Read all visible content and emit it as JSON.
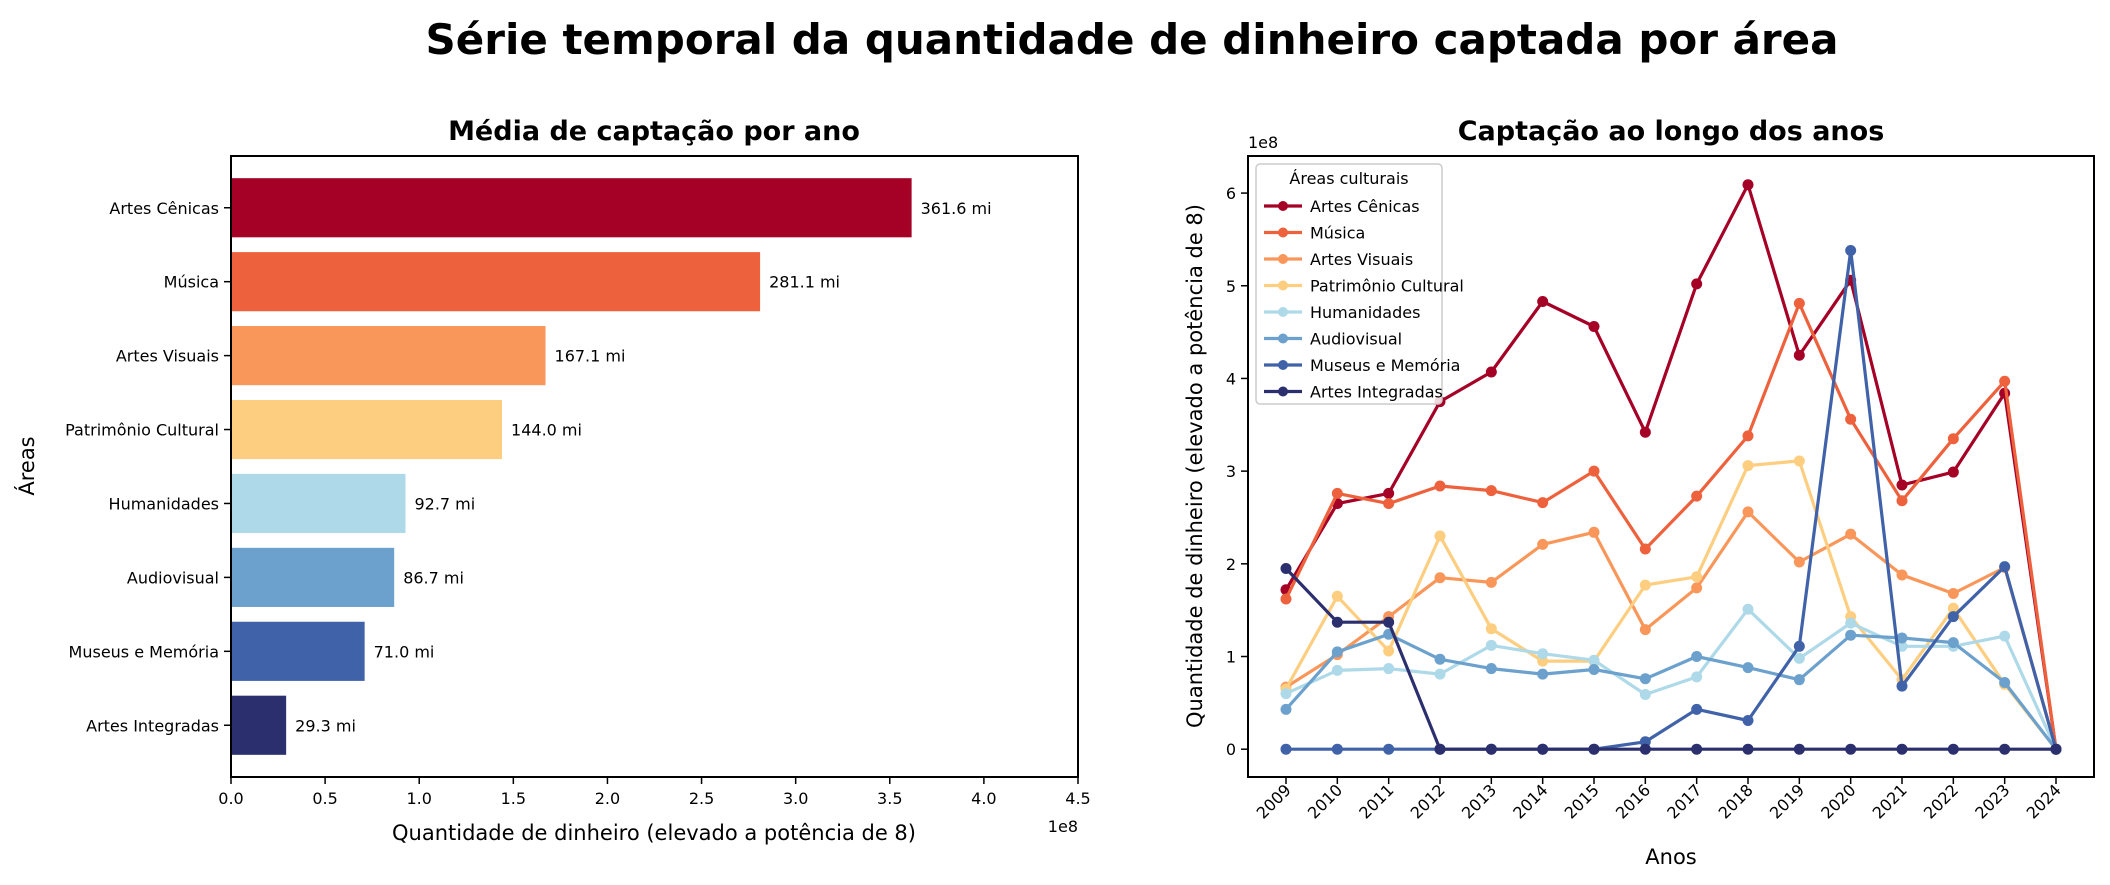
{
  "suptitle": "Série temporal da quantidade de dinheiro captada por área",
  "chart_data": [
    {
      "type": "bar",
      "orientation": "horizontal",
      "title": "Média de captação por ano",
      "xlabel": "Quantidade de dinheiro (elevado a potência de 8)",
      "ylabel": "Áreas",
      "offset_text": "1e8",
      "xlim": [
        0,
        4.5
      ],
      "xticks": [
        "0.0",
        "0.5",
        "1.0",
        "1.5",
        "2.0",
        "2.5",
        "3.0",
        "3.5",
        "4.0",
        "4.5"
      ],
      "categories": [
        "Artes Cênicas",
        "Música",
        "Artes Visuais",
        "Patrimônio Cultural",
        "Humanidades",
        "Audiovisual",
        "Museus e Memória",
        "Artes Integradas"
      ],
      "values": [
        3.616,
        2.811,
        1.671,
        1.44,
        0.927,
        0.867,
        0.71,
        0.293
      ],
      "value_labels": [
        "361.6 mi",
        "281.1 mi",
        "167.1 mi",
        "144.0 mi",
        "92.7 mi",
        "86.7 mi",
        "71.0 mi",
        "29.3 mi"
      ],
      "colors": [
        "#a50026",
        "#ee613d",
        "#f9975a",
        "#fdce80",
        "#aed9e8",
        "#6ba1cc",
        "#4062a8",
        "#2c2f6e"
      ]
    },
    {
      "type": "line",
      "title": "Captação ao longo dos anos",
      "xlabel": "Anos",
      "ylabel": "Quantidade de dinheiro (elevado a potência de 8)",
      "offset_text": "1e8",
      "ylim": [
        -0.3,
        6.4
      ],
      "yticks": [
        "0",
        "1",
        "2",
        "3",
        "4",
        "5",
        "6"
      ],
      "x": [
        "2009",
        "2010",
        "2011",
        "2012",
        "2013",
        "2014",
        "2015",
        "2016",
        "2017",
        "2018",
        "2019",
        "2020",
        "2021",
        "2022",
        "2023",
        "2024"
      ],
      "legend_title": "Áreas culturais",
      "legend_position": "upper left",
      "series": [
        {
          "name": "Artes Cênicas",
          "color": "#a50026",
          "values": [
            1.72,
            2.65,
            2.76,
            3.75,
            4.07,
            4.83,
            4.56,
            3.42,
            5.02,
            6.09,
            4.25,
            5.06,
            2.85,
            2.99,
            3.84,
            0.0
          ]
        },
        {
          "name": "Música",
          "color": "#ee613d",
          "values": [
            1.62,
            2.76,
            2.65,
            2.84,
            2.79,
            2.66,
            3.0,
            2.16,
            2.73,
            3.38,
            4.81,
            3.56,
            2.68,
            3.35,
            3.97,
            0.0
          ]
        },
        {
          "name": "Artes Visuais",
          "color": "#f9975a",
          "values": [
            0.67,
            1.02,
            1.43,
            1.85,
            1.8,
            2.21,
            2.34,
            1.29,
            1.74,
            2.56,
            2.02,
            2.32,
            1.88,
            1.68,
            1.96,
            0.0
          ]
        },
        {
          "name": "Patrimônio Cultural",
          "color": "#fdce80",
          "values": [
            0.65,
            1.65,
            1.06,
            2.3,
            1.3,
            0.95,
            0.95,
            1.77,
            1.86,
            3.06,
            3.11,
            1.43,
            0.75,
            1.52,
            0.7,
            0.0
          ]
        },
        {
          "name": "Humanidades",
          "color": "#aed9e8",
          "values": [
            0.6,
            0.85,
            0.87,
            0.81,
            1.12,
            1.03,
            0.96,
            0.59,
            0.78,
            1.51,
            0.98,
            1.36,
            1.11,
            1.11,
            1.22,
            0.0
          ]
        },
        {
          "name": "Audiovisual",
          "color": "#6ba1cc",
          "values": [
            0.43,
            1.05,
            1.24,
            0.97,
            0.87,
            0.81,
            0.86,
            0.76,
            1.0,
            0.88,
            0.75,
            1.23,
            1.2,
            1.15,
            0.72,
            0.0
          ]
        },
        {
          "name": "Museus e Memória",
          "color": "#4062a8",
          "values": [
            0.0,
            0.0,
            0.0,
            0.0,
            0.0,
            0.0,
            0.0,
            0.08,
            0.43,
            0.31,
            1.11,
            5.38,
            0.68,
            1.43,
            1.97,
            0.0
          ]
        },
        {
          "name": "Artes Integradas",
          "color": "#2c2f6e",
          "values": [
            1.95,
            1.37,
            1.37,
            0.0,
            0.0,
            0.0,
            0.0,
            0.0,
            0.0,
            0.0,
            0.0,
            0.0,
            0.0,
            0.0,
            0.0,
            0.0
          ]
        }
      ]
    }
  ]
}
